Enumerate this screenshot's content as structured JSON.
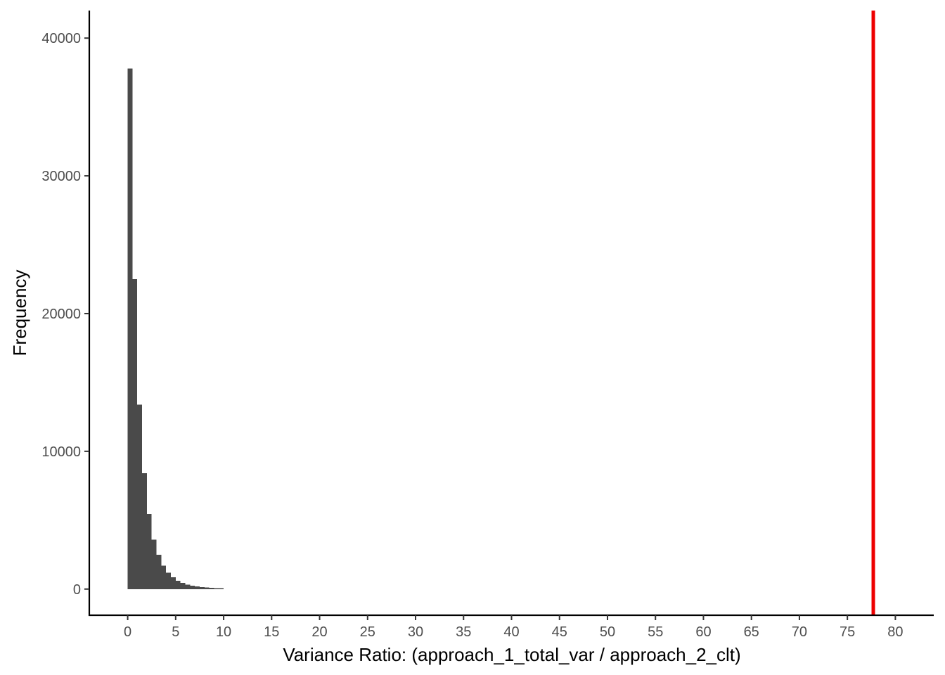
{
  "chart_data": {
    "type": "bar",
    "title": "",
    "xlabel": "Variance Ratio: (approach_1_total_var / approach_2_clt)",
    "ylabel": "Frequency",
    "xlim": [
      -4.0,
      84.0
    ],
    "ylim": [
      -1900,
      42000
    ],
    "grid": false,
    "x_ticks": [
      0,
      5,
      10,
      15,
      20,
      25,
      30,
      35,
      40,
      45,
      50,
      55,
      60,
      65,
      70,
      75,
      80
    ],
    "x_tick_labels": [
      "0",
      "5",
      "10",
      "15",
      "20",
      "25",
      "30",
      "35",
      "40",
      "45",
      "50",
      "55",
      "60",
      "65",
      "70",
      "75",
      "80"
    ],
    "y_ticks": [
      0,
      10000,
      20000,
      30000,
      40000
    ],
    "y_tick_labels": [
      "0",
      "10000",
      "20000",
      "30000",
      "40000"
    ],
    "bin_width": 0.5,
    "bins": [
      {
        "x0": 0.0,
        "x1": 0.5,
        "count": 37800
      },
      {
        "x0": 0.5,
        "x1": 1.0,
        "count": 22500
      },
      {
        "x0": 1.0,
        "x1": 1.5,
        "count": 13400
      },
      {
        "x0": 1.5,
        "x1": 2.0,
        "count": 8400
      },
      {
        "x0": 2.0,
        "x1": 2.5,
        "count": 5450
      },
      {
        "x0": 2.5,
        "x1": 3.0,
        "count": 3600
      },
      {
        "x0": 3.0,
        "x1": 3.5,
        "count": 2500
      },
      {
        "x0": 3.5,
        "x1": 4.0,
        "count": 1700
      },
      {
        "x0": 4.0,
        "x1": 4.5,
        "count": 1200
      },
      {
        "x0": 4.5,
        "x1": 5.0,
        "count": 850
      },
      {
        "x0": 5.0,
        "x1": 5.5,
        "count": 600
      },
      {
        "x0": 5.5,
        "x1": 6.0,
        "count": 450
      },
      {
        "x0": 6.0,
        "x1": 6.5,
        "count": 330
      },
      {
        "x0": 6.5,
        "x1": 7.0,
        "count": 250
      },
      {
        "x0": 7.0,
        "x1": 7.5,
        "count": 190
      },
      {
        "x0": 7.5,
        "x1": 8.0,
        "count": 150
      },
      {
        "x0": 8.0,
        "x1": 8.5,
        "count": 120
      },
      {
        "x0": 8.5,
        "x1": 9.0,
        "count": 95
      },
      {
        "x0": 9.0,
        "x1": 9.5,
        "count": 75
      },
      {
        "x0": 9.5,
        "x1": 10.0,
        "count": 60
      }
    ],
    "reference_line": {
      "x": 77.7,
      "color": "#ee0000"
    },
    "bar_color": "#4a4a4a",
    "axis_color": "#000000"
  }
}
